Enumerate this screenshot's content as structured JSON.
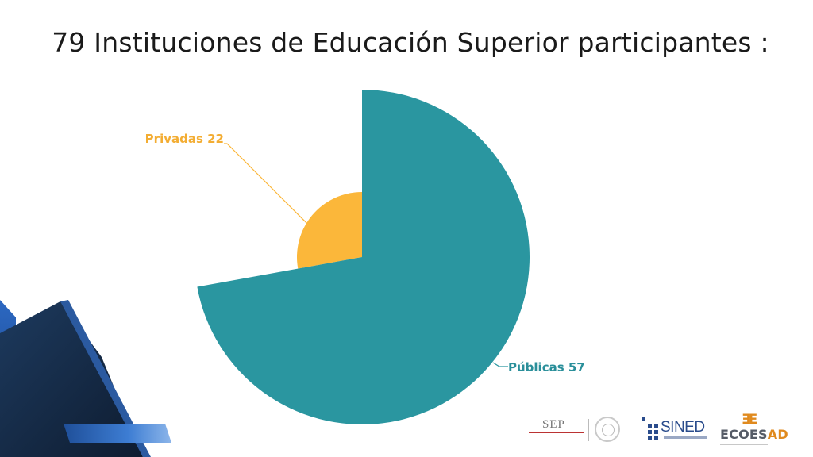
{
  "slide": {
    "title": "79 Instituciones de Educación Superior participantes :"
  },
  "chart_data": {
    "type": "pie",
    "title": "",
    "slices": [
      {
        "label": "Privadas",
        "value": 22,
        "color": "#fbb73a",
        "display": "Privadas 22"
      },
      {
        "label": "Públicas",
        "value": 57,
        "color": "#2a96a0",
        "display": "Públicas 57"
      }
    ],
    "total": 79,
    "label_colors": {
      "Privadas": "#fbb73a",
      "Públicas": "#2a96a0"
    },
    "label_text_colors": {
      "Privadas": "#f3ad33",
      "Públicas": "#2a8f9a"
    }
  },
  "logos": {
    "sep": {
      "name": "SEP",
      "icon": "sep-logo"
    },
    "seal": {
      "icon": "mexico-seal-icon"
    },
    "sined": {
      "name": "SINED",
      "icon": "sined-blocks-icon"
    },
    "ecoesad": {
      "name_a": "ECOES",
      "name_b": "AD",
      "icon": "ecoesad-mark-icon",
      "mark": "ƎE"
    }
  },
  "colors": {
    "deco_dark": "#152a45",
    "deco_blue": "#1f5aa8",
    "deco_light": "#5b8fd6"
  }
}
